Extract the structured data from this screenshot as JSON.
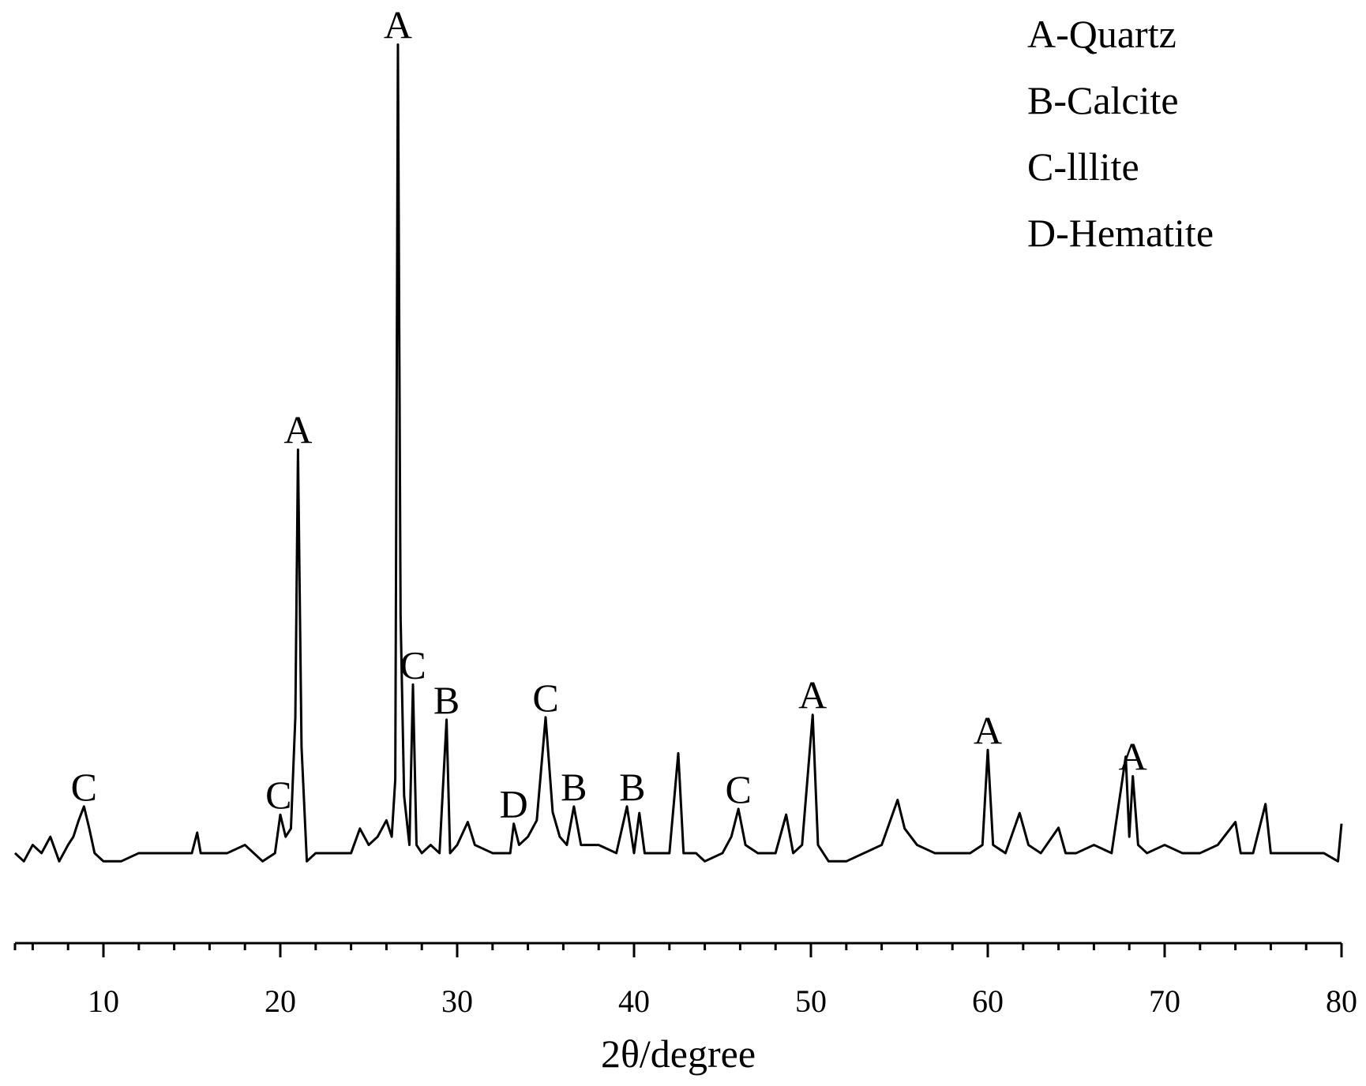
{
  "chart_data": {
    "type": "line",
    "x_label": "2θ/degree",
    "legend_text": [
      "A-Quartz",
      "B-Calcite",
      "C-lllite",
      "D-Hematite"
    ],
    "color": "#000000",
    "xlim": [
      5,
      80
    ],
    "ylim": [
      -10,
      101
    ],
    "xticks": [
      10,
      20,
      30,
      40,
      50,
      60,
      70,
      80
    ],
    "minor_xticks": [
      5,
      6,
      8,
      12,
      14,
      16,
      18,
      22,
      24,
      26,
      28,
      32,
      34,
      36,
      38,
      42,
      44,
      46,
      48,
      52,
      54,
      56,
      58,
      62,
      64,
      66,
      68,
      72,
      74,
      76,
      78
    ],
    "x": [
      5,
      5.5,
      6,
      6.5,
      7,
      7.5,
      8,
      8.3,
      8.6,
      8.9,
      9.2,
      9.5,
      10,
      11,
      12,
      13,
      14,
      15,
      15.3,
      15.5,
      16,
      17,
      18,
      19,
      19.7,
      20.0,
      20.3,
      20.6,
      20.85,
      21.0,
      21.2,
      21.5,
      22,
      23,
      24,
      24.5,
      25,
      25.5,
      26,
      26.3,
      26.5,
      26.65,
      26.8,
      27.0,
      27.3,
      27.5,
      27.7,
      28,
      28.5,
      29,
      29.4,
      29.6,
      30,
      30.6,
      31,
      32,
      33,
      33.2,
      33.5,
      34,
      34.5,
      35.0,
      35.4,
      35.8,
      36.2,
      36.6,
      37,
      38,
      39,
      39.6,
      40,
      40.3,
      40.6,
      41,
      42,
      42.5,
      42.8,
      43.5,
      44,
      45,
      45.5,
      45.9,
      46.3,
      47,
      48,
      48.6,
      49,
      49.5,
      50.1,
      50.4,
      51,
      52,
      53,
      54,
      54.9,
      55.3,
      56,
      57,
      58,
      59,
      59.7,
      60.0,
      60.3,
      61,
      61.8,
      62.3,
      63,
      64,
      64.4,
      65,
      66,
      67,
      67.8,
      68.0,
      68.2,
      68.5,
      69,
      70,
      71,
      72,
      73,
      74,
      74.3,
      75,
      75.7,
      76,
      77,
      78,
      79,
      79.8,
      80
    ],
    "values": [
      1,
      0,
      2,
      1,
      3,
      0,
      2,
      3,
      5,
      6.7,
      4,
      1,
      0,
      0,
      1,
      1,
      1,
      1,
      3.5,
      1,
      1,
      1,
      2,
      0,
      1,
      5.7,
      3,
      4,
      17.6,
      50.3,
      14,
      0,
      1,
      1,
      1,
      4,
      2,
      3,
      5,
      3,
      10,
      99.8,
      30,
      8,
      2,
      21.6,
      2,
      1,
      2,
      1,
      17.3,
      1,
      2,
      4.8,
      2,
      1,
      1,
      4.6,
      2,
      3,
      5,
      17.6,
      6,
      3,
      2,
      6.7,
      2,
      2,
      1,
      6.7,
      1,
      5.9,
      1,
      1,
      1,
      13.2,
      1,
      1,
      0,
      1,
      3,
      6.4,
      2,
      1,
      1,
      5.7,
      1,
      2,
      17.9,
      2,
      0,
      0,
      1,
      2,
      7.5,
      4,
      2,
      1,
      1,
      1,
      2,
      13.6,
      2,
      1,
      5.9,
      2,
      1,
      4.1,
      1,
      1,
      2,
      1,
      12.8,
      3,
      10.4,
      2,
      1,
      2,
      1,
      1,
      2,
      4.8,
      1,
      1,
      7,
      1,
      1,
      1,
      1,
      0,
      4.6
    ],
    "annotations": [
      {
        "text": "C",
        "x": 8.9,
        "y": 6.7
      },
      {
        "text": "C",
        "x": 19.9,
        "y": 5.7
      },
      {
        "text": "A",
        "x": 21.0,
        "y": 50.3
      },
      {
        "text": "A",
        "x": 26.65,
        "y": 99.8
      },
      {
        "text": "C",
        "x": 27.5,
        "y": 21.6
      },
      {
        "text": "B",
        "x": 29.4,
        "y": 17.3
      },
      {
        "text": "D",
        "x": 33.2,
        "y": 4.6
      },
      {
        "text": "C",
        "x": 35.0,
        "y": 17.6
      },
      {
        "text": "B",
        "x": 36.6,
        "y": 6.7
      },
      {
        "text": "B",
        "x": 39.9,
        "y": 6.7
      },
      {
        "text": "C",
        "x": 45.9,
        "y": 6.4
      },
      {
        "text": "A",
        "x": 50.1,
        "y": 17.9
      },
      {
        "text": "A",
        "x": 60.0,
        "y": 13.6
      },
      {
        "text": "A",
        "x": 68.2,
        "y": 10.4
      }
    ]
  }
}
